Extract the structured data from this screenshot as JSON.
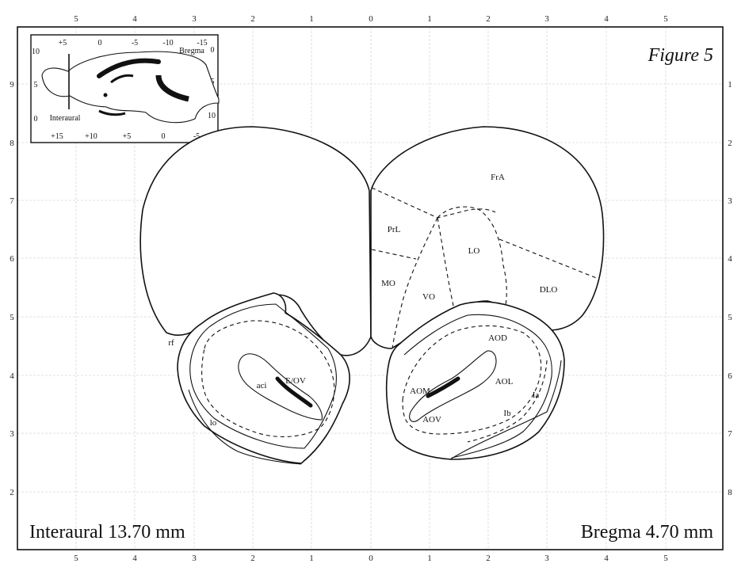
{
  "figure": {
    "title": "Figure 5",
    "interaural_label": "Interaural 13.70 mm",
    "bregma_label": "Bregma 4.70 mm"
  },
  "axes": {
    "top": [
      "5",
      "4",
      "3",
      "2",
      "1",
      "0",
      "1",
      "2",
      "3",
      "4",
      "5"
    ],
    "bottom": [
      "5",
      "4",
      "3",
      "2",
      "1",
      "0",
      "1",
      "2",
      "3",
      "4",
      "5"
    ],
    "left": [
      "9",
      "8",
      "7",
      "6",
      "5",
      "4",
      "3",
      "2"
    ],
    "right": [
      "1",
      "2",
      "3",
      "4",
      "5",
      "6",
      "7",
      "8"
    ]
  },
  "inset": {
    "bregma_label": "Bregma",
    "interaural_label": "Interaural",
    "top_ticks": [
      "+5",
      "0",
      "-5",
      "-10",
      "-15"
    ],
    "bottom_ticks": [
      "+15",
      "+10",
      "+5",
      "0",
      "-5"
    ],
    "left_ticks": [
      "10",
      "5",
      "0"
    ],
    "right_ticks": [
      "0",
      "5",
      "10"
    ]
  },
  "regions": {
    "FrA": "FrA",
    "PrL": "PrL",
    "LO": "LO",
    "MO": "MO",
    "VO": "VO",
    "DLO": "DLO",
    "AOD": "AOD",
    "AOL": "AOL",
    "AOM": "AOM",
    "AOV": "AOV",
    "Ia": "Ia",
    "Ib": "Ib",
    "E_OV": "E/OV",
    "aci": "aci",
    "lo": "lo",
    "rf": "rf"
  }
}
